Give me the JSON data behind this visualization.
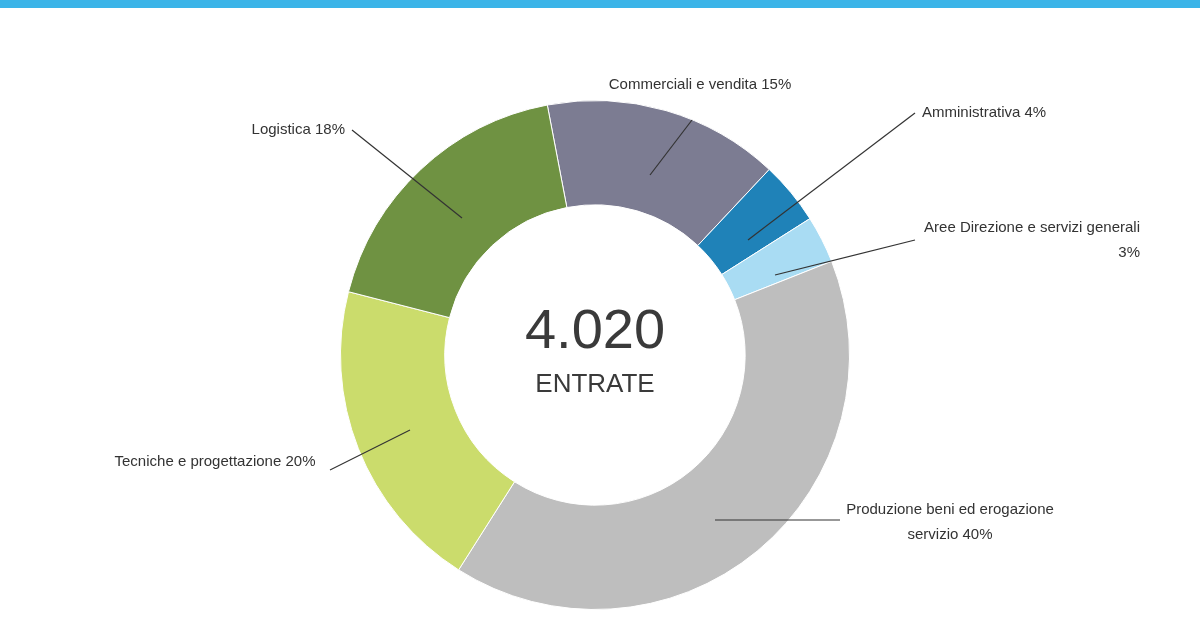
{
  "chart_data": {
    "type": "donut",
    "categories": [
      "Commerciali e vendita",
      "Amministrativa",
      "Aree Direzione e servizi generali",
      "Produzione beni ed erogazione servizio",
      "Tecniche e progettazione",
      "Logistica"
    ],
    "values": [
      15,
      4,
      3,
      40,
      20,
      18
    ],
    "value_labels": [
      "15%",
      "4%",
      "3%",
      "40%",
      "20%",
      "18%"
    ],
    "colors": [
      "#7c7c92",
      "#1f82b8",
      "#a9dcf3",
      "#bebebe",
      "#cbdc6c",
      "#6f9242"
    ],
    "annotations": [
      "4.020",
      "ENTRATE"
    ],
    "legend": false
  }
}
